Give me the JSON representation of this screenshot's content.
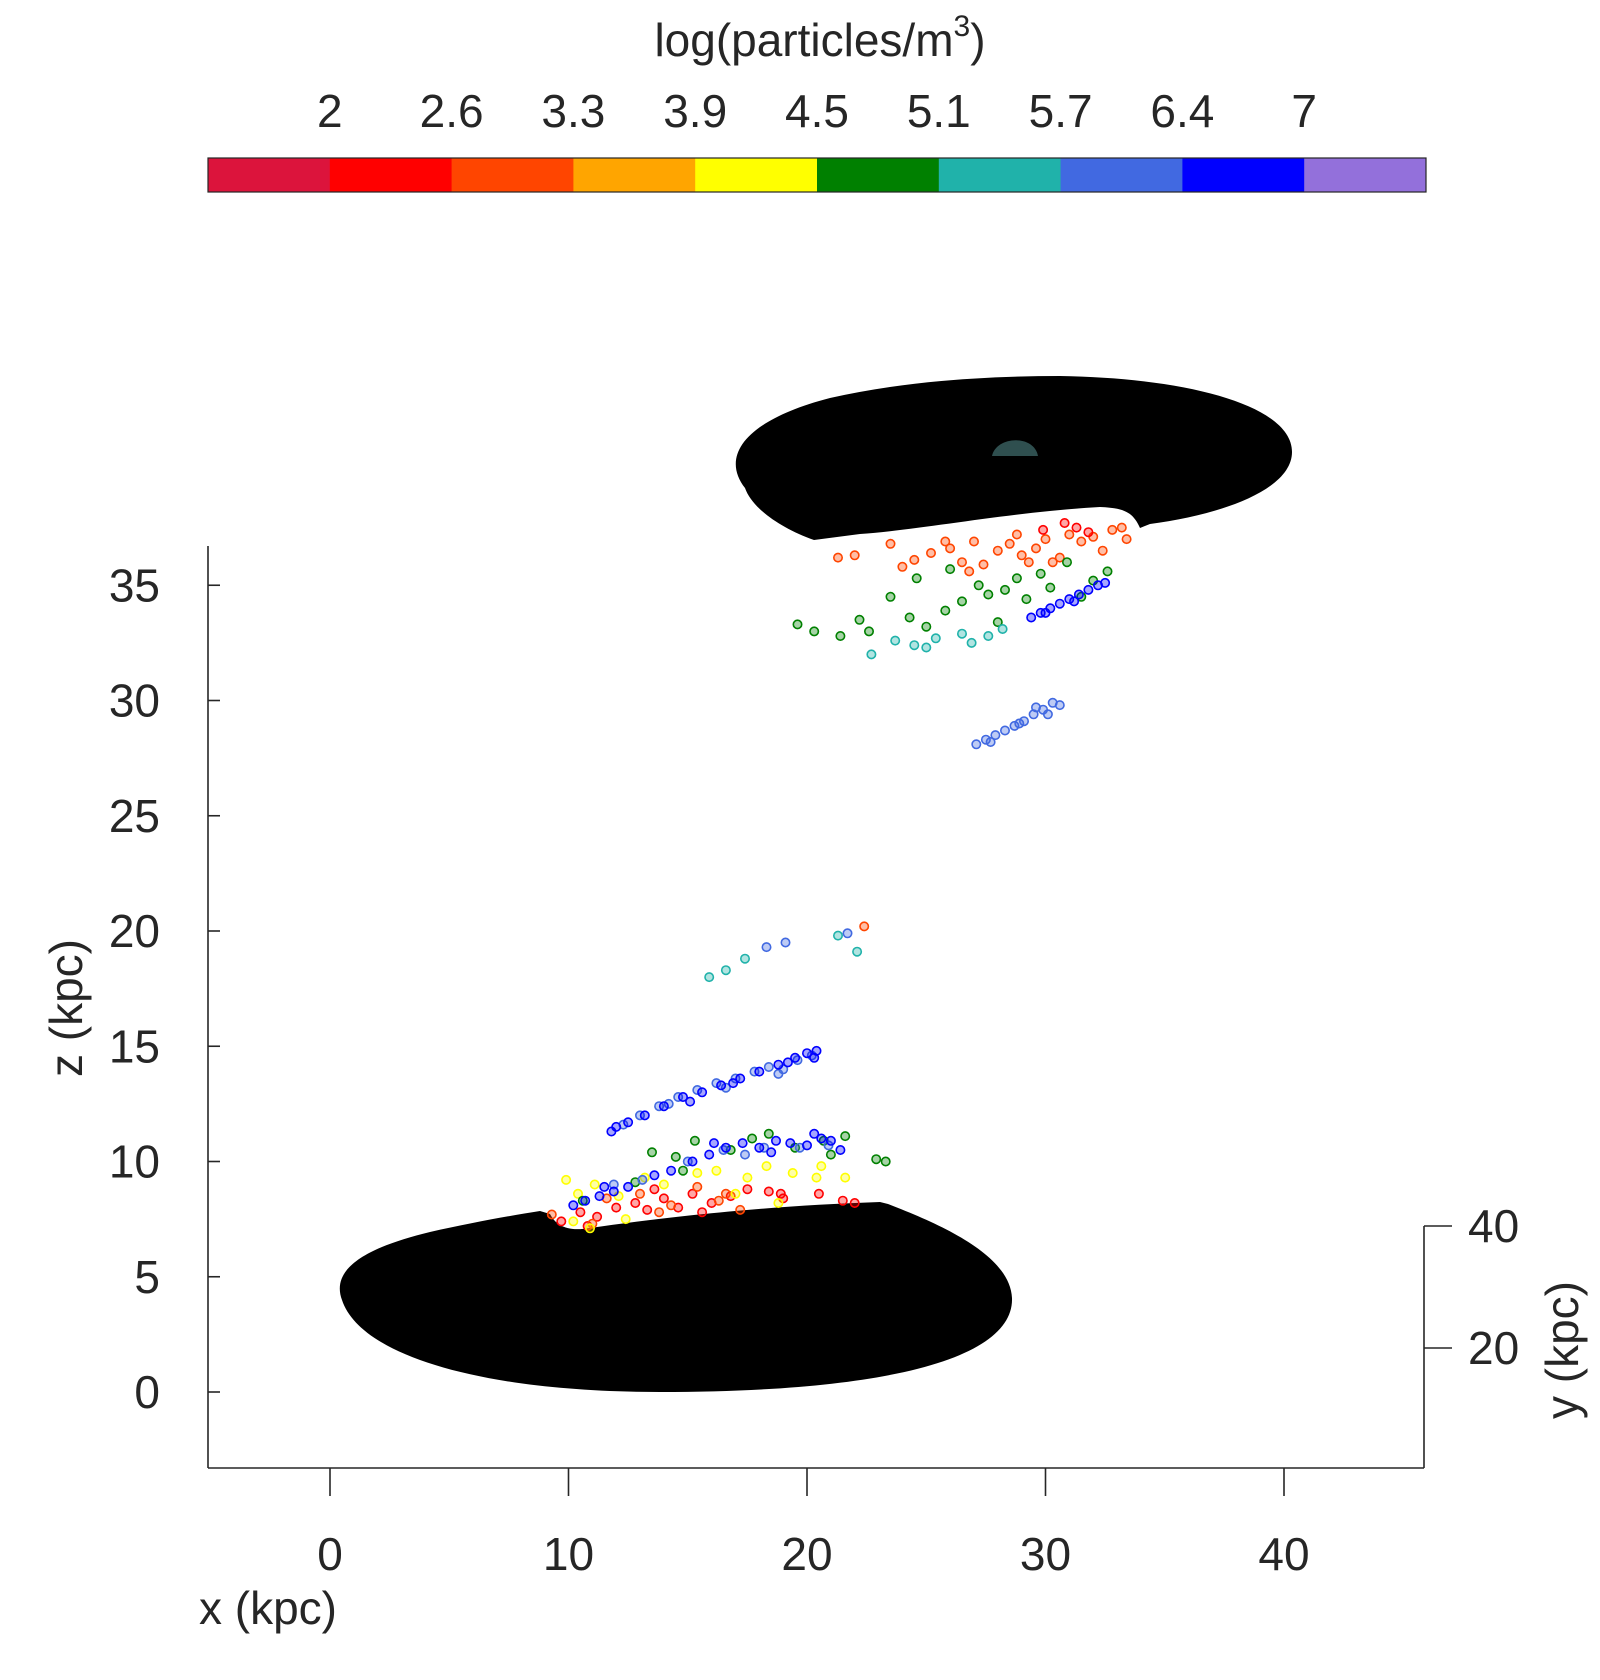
{
  "chart_data": {
    "type": "scatter",
    "colorbar": {
      "title": "log(particles/m",
      "title_sup": "3",
      "title_close": ")",
      "tick_labels": [
        "2",
        "2.6",
        "3.3",
        "3.9",
        "4.5",
        "5.1",
        "5.7",
        "6.4",
        "7"
      ],
      "colors": [
        "#dc143c",
        "#ff0000",
        "#ff4500",
        "#ffa500",
        "#ffff00",
        "#008000",
        "#20b2aa",
        "#4169e1",
        "#0000ff",
        "#9370db"
      ]
    },
    "xlabel": "x (kpc)",
    "zlabel": "z (kpc)",
    "ylabel": "y (kpc)",
    "x_ticks": [
      "0",
      "10",
      "20",
      "30",
      "40"
    ],
    "z_ticks": [
      "0",
      "5",
      "10",
      "15",
      "20",
      "25",
      "30",
      "35"
    ],
    "y_ticks": [
      "20",
      "40"
    ],
    "xlim": [
      -5.2,
      45.8
    ],
    "zlim": [
      -3.4,
      36.7
    ],
    "disks": [
      {
        "name": "lower-galaxy-disk",
        "color": "#000000"
      },
      {
        "name": "upper-galaxy-disk",
        "color": "#000000",
        "bulge_color": "#2f4f4f"
      }
    ],
    "series": [
      {
        "color": "#ff4500",
        "points": [
          [
            21.3,
            36.2
          ],
          [
            22.0,
            36.3
          ],
          [
            23.5,
            36.8
          ],
          [
            24.5,
            36.1
          ],
          [
            25.2,
            36.4
          ],
          [
            26.0,
            36.6
          ],
          [
            26.5,
            36.0
          ],
          [
            27.0,
            36.9
          ],
          [
            27.4,
            35.9
          ],
          [
            28.0,
            36.5
          ],
          [
            28.5,
            36.8
          ],
          [
            29.0,
            36.3
          ],
          [
            29.6,
            36.6
          ],
          [
            30.0,
            37.0
          ],
          [
            30.6,
            36.2
          ],
          [
            31.0,
            37.2
          ],
          [
            31.5,
            36.9
          ],
          [
            32.0,
            37.1
          ],
          [
            32.4,
            36.5
          ],
          [
            32.8,
            37.4
          ],
          [
            33.2,
            37.5
          ],
          [
            33.4,
            37.0
          ],
          [
            24.0,
            35.8
          ],
          [
            25.8,
            36.9
          ],
          [
            28.8,
            37.2
          ],
          [
            30.3,
            36.0
          ],
          [
            26.8,
            35.6
          ],
          [
            29.3,
            36.0
          ]
        ]
      },
      {
        "color": "#ff0000",
        "points": [
          [
            29.9,
            37.4
          ],
          [
            31.3,
            37.5
          ],
          [
            30.8,
            37.7
          ],
          [
            31.8,
            37.3
          ],
          [
            9.7,
            7.4
          ],
          [
            10.5,
            7.8
          ],
          [
            11.2,
            7.6
          ],
          [
            12.0,
            8.0
          ],
          [
            12.8,
            8.2
          ],
          [
            13.3,
            7.9
          ],
          [
            14.0,
            8.4
          ],
          [
            14.6,
            8.0
          ],
          [
            15.2,
            8.6
          ],
          [
            16.0,
            8.2
          ],
          [
            16.8,
            8.5
          ],
          [
            17.5,
            8.8
          ],
          [
            18.4,
            8.7
          ],
          [
            19.0,
            8.4
          ],
          [
            20.5,
            8.6
          ],
          [
            21.5,
            8.3
          ],
          [
            22.0,
            8.2
          ],
          [
            10.8,
            7.2
          ],
          [
            13.6,
            8.8
          ],
          [
            15.6,
            7.8
          ],
          [
            18.9,
            8.6
          ]
        ]
      },
      {
        "color": "#ff4500",
        "points": [
          [
            22.4,
            20.2
          ],
          [
            9.3,
            7.7
          ],
          [
            11.6,
            8.4
          ],
          [
            13.0,
            8.6
          ],
          [
            14.3,
            8.1
          ],
          [
            15.4,
            8.9
          ],
          [
            16.3,
            8.3
          ],
          [
            17.2,
            7.9
          ],
          [
            11.0,
            7.3
          ],
          [
            13.8,
            7.8
          ],
          [
            16.6,
            8.6
          ]
        ]
      },
      {
        "color": "#ffff00",
        "points": [
          [
            9.9,
            9.2
          ],
          [
            10.4,
            8.6
          ],
          [
            11.1,
            9.0
          ],
          [
            12.1,
            8.5
          ],
          [
            13.2,
            9.3
          ],
          [
            14.0,
            9.0
          ],
          [
            15.4,
            9.5
          ],
          [
            16.2,
            9.6
          ],
          [
            17.5,
            9.3
          ],
          [
            18.3,
            9.8
          ],
          [
            19.4,
            9.5
          ],
          [
            20.4,
            9.3
          ],
          [
            20.6,
            9.8
          ],
          [
            21.6,
            9.3
          ],
          [
            10.2,
            7.4
          ],
          [
            10.9,
            7.1
          ],
          [
            12.4,
            7.5
          ],
          [
            17.0,
            8.6
          ],
          [
            18.8,
            8.2
          ]
        ]
      },
      {
        "color": "#008000",
        "points": [
          [
            19.6,
            33.3
          ],
          [
            20.3,
            33.0
          ],
          [
            21.4,
            32.8
          ],
          [
            22.2,
            33.5
          ],
          [
            23.5,
            34.5
          ],
          [
            24.3,
            33.6
          ],
          [
            25.0,
            33.2
          ],
          [
            25.8,
            33.9
          ],
          [
            26.5,
            34.3
          ],
          [
            27.2,
            35.0
          ],
          [
            27.6,
            34.6
          ],
          [
            28.3,
            34.8
          ],
          [
            28.8,
            35.3
          ],
          [
            29.2,
            34.4
          ],
          [
            29.8,
            35.5
          ],
          [
            30.2,
            34.9
          ],
          [
            30.9,
            36.0
          ],
          [
            31.5,
            34.5
          ],
          [
            32.0,
            35.2
          ],
          [
            32.6,
            35.6
          ],
          [
            22.6,
            33.0
          ],
          [
            24.6,
            35.3
          ],
          [
            26.0,
            35.7
          ],
          [
            28.0,
            33.4
          ],
          [
            12.8,
            9.1
          ],
          [
            14.5,
            10.2
          ],
          [
            15.3,
            10.9
          ],
          [
            16.8,
            10.5
          ],
          [
            17.7,
            11.0
          ],
          [
            18.4,
            11.2
          ],
          [
            19.5,
            10.6
          ],
          [
            21.0,
            10.3
          ],
          [
            21.6,
            11.1
          ],
          [
            22.9,
            10.1
          ],
          [
            23.3,
            10.0
          ],
          [
            10.6,
            8.3
          ],
          [
            13.5,
            10.4
          ],
          [
            14.8,
            9.6
          ],
          [
            20.7,
            10.9
          ]
        ]
      },
      {
        "color": "#20b2aa",
        "points": [
          [
            22.7,
            32.0
          ],
          [
            23.7,
            32.6
          ],
          [
            24.5,
            32.4
          ],
          [
            25.4,
            32.7
          ],
          [
            26.5,
            32.9
          ],
          [
            27.6,
            32.8
          ],
          [
            28.2,
            33.1
          ],
          [
            15.9,
            18.0
          ],
          [
            16.6,
            18.3
          ],
          [
            17.4,
            18.8
          ],
          [
            21.3,
            19.8
          ],
          [
            22.1,
            19.1
          ],
          [
            25.0,
            32.3
          ],
          [
            26.9,
            32.5
          ]
        ]
      },
      {
        "color": "#4169e1",
        "points": [
          [
            27.1,
            28.1
          ],
          [
            27.5,
            28.3
          ],
          [
            27.9,
            28.5
          ],
          [
            28.3,
            28.7
          ],
          [
            28.7,
            28.9
          ],
          [
            29.1,
            29.1
          ],
          [
            29.5,
            29.4
          ],
          [
            29.9,
            29.6
          ],
          [
            30.3,
            29.9
          ],
          [
            30.6,
            29.8
          ],
          [
            27.7,
            28.2
          ],
          [
            28.9,
            29.0
          ],
          [
            29.6,
            29.7
          ],
          [
            30.1,
            29.4
          ],
          [
            18.3,
            19.3
          ],
          [
            19.1,
            19.5
          ],
          [
            21.7,
            19.9
          ],
          [
            12.3,
            11.6
          ],
          [
            13.0,
            12.0
          ],
          [
            13.8,
            12.4
          ],
          [
            14.6,
            12.8
          ],
          [
            15.4,
            13.1
          ],
          [
            16.2,
            13.4
          ],
          [
            17.0,
            13.6
          ],
          [
            17.8,
            13.9
          ],
          [
            18.4,
            14.1
          ],
          [
            19.0,
            14.0
          ],
          [
            19.6,
            14.4
          ],
          [
            20.2,
            14.6
          ],
          [
            16.6,
            13.2
          ],
          [
            18.8,
            13.8
          ],
          [
            14.2,
            12.5
          ],
          [
            11.9,
            9.0
          ],
          [
            13.1,
            9.2
          ],
          [
            15.0,
            10.0
          ],
          [
            16.5,
            10.5
          ],
          [
            18.2,
            10.6
          ],
          [
            19.7,
            10.6
          ],
          [
            20.9,
            10.7
          ],
          [
            17.4,
            10.3
          ]
        ]
      },
      {
        "color": "#0000ff",
        "points": [
          [
            29.4,
            33.6
          ],
          [
            29.8,
            33.8
          ],
          [
            30.2,
            34.0
          ],
          [
            30.6,
            34.2
          ],
          [
            31.0,
            34.4
          ],
          [
            31.4,
            34.6
          ],
          [
            31.8,
            34.8
          ],
          [
            32.2,
            35.0
          ],
          [
            32.5,
            35.1
          ],
          [
            30.0,
            33.8
          ],
          [
            31.2,
            34.3
          ],
          [
            11.8,
            11.3
          ],
          [
            12.5,
            11.7
          ],
          [
            13.2,
            12.0
          ],
          [
            14.0,
            12.4
          ],
          [
            14.8,
            12.8
          ],
          [
            15.6,
            13.0
          ],
          [
            16.4,
            13.3
          ],
          [
            17.2,
            13.6
          ],
          [
            18.0,
            13.9
          ],
          [
            18.8,
            14.2
          ],
          [
            19.5,
            14.5
          ],
          [
            20.0,
            14.7
          ],
          [
            20.3,
            14.5
          ],
          [
            20.4,
            14.8
          ],
          [
            12.0,
            11.5
          ],
          [
            15.1,
            12.6
          ],
          [
            16.9,
            13.4
          ],
          [
            19.2,
            14.3
          ],
          [
            10.2,
            8.1
          ],
          [
            10.7,
            8.3
          ],
          [
            11.3,
            8.5
          ],
          [
            11.9,
            8.7
          ],
          [
            12.5,
            8.9
          ],
          [
            13.6,
            9.4
          ],
          [
            14.3,
            9.6
          ],
          [
            15.2,
            10.0
          ],
          [
            15.9,
            10.3
          ],
          [
            16.6,
            10.6
          ],
          [
            17.3,
            10.8
          ],
          [
            18.0,
            10.6
          ],
          [
            18.7,
            10.9
          ],
          [
            19.3,
            10.8
          ],
          [
            20.0,
            10.7
          ],
          [
            20.6,
            11.0
          ],
          [
            21.0,
            10.9
          ],
          [
            21.4,
            10.5
          ],
          [
            16.1,
            10.8
          ],
          [
            18.5,
            10.4
          ],
          [
            20.3,
            11.2
          ],
          [
            11.5,
            8.9
          ]
        ]
      }
    ]
  }
}
